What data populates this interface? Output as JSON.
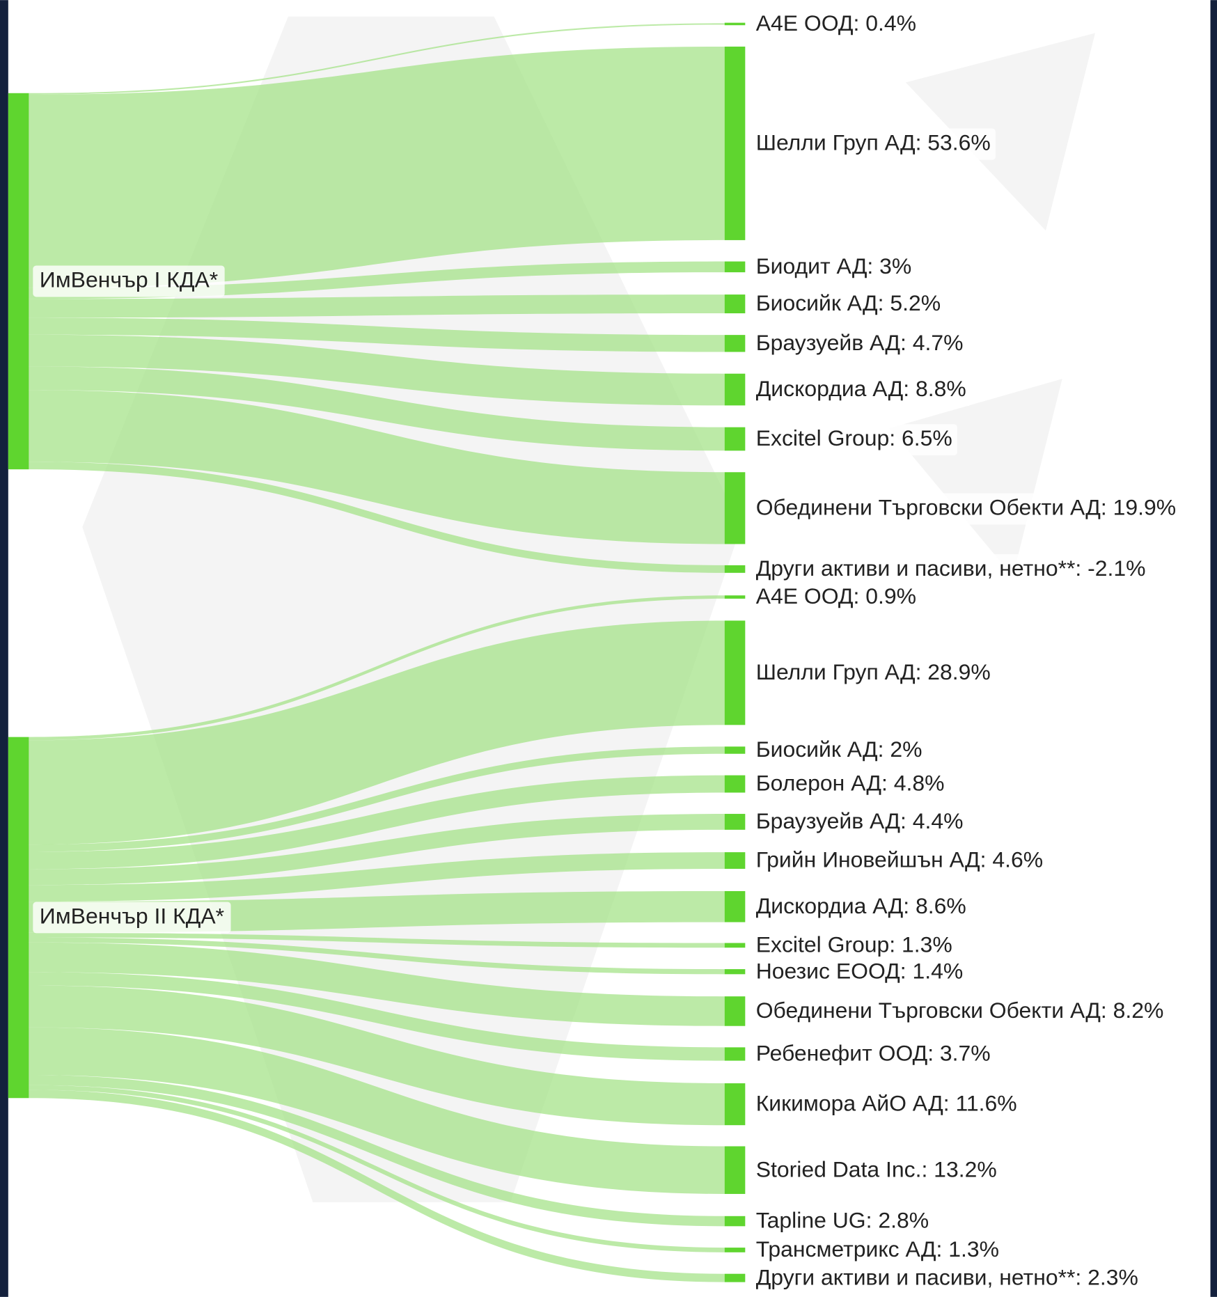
{
  "chart_data": {
    "type": "sankey",
    "node_color": "#5fd52f",
    "link_color": "#a6e38a",
    "sources": [
      {
        "name": "ИмВенчър I КДА*",
        "values": [
          0.4,
          53.6,
          3,
          5.2,
          4.7,
          8.8,
          6.5,
          19.9,
          -2.1
        ],
        "value_labels": [
          "А4Е ООД: 0.4%",
          "Шелли Груп АД: 53.6%",
          "Биодит АД: 3%",
          "Биосийк АД: 5.2%",
          "Браузуейв АД: 4.7%",
          "Дискордиа АД: 8.8%",
          "Excitel Group: 6.5%",
          "Обединени Търговски Обекти АД: 19.9%",
          "Други активи и пасиви, нетно**: -2.1%"
        ]
      },
      {
        "name": "ИмВенчър II КДА*",
        "values": [
          0.9,
          28.9,
          2,
          4.8,
          4.4,
          4.6,
          8.6,
          1.3,
          1.4,
          8.2,
          3.7,
          11.6,
          13.2,
          2.8,
          1.3,
          2.3
        ],
        "value_labels": [
          "А4Е ООД: 0.9%",
          "Шелли Груп АД: 28.9%",
          "Биосийк АД: 2%",
          "Болерон АД: 4.8%",
          "Браузуейв АД: 4.4%",
          "Грийн Иновейшън АД: 4.6%",
          "Дискордиа АД: 8.6%",
          "Excitel Group: 1.3%",
          "Ноезис ЕООД: 1.4%",
          "Обединени Търговски Обекти АД: 8.2%",
          "Ребенефит ООД: 3.7%",
          "Кикимора АйО АД: 11.6%",
          "Storied Data Inc.: 13.2%",
          "Tapline UG: 2.8%",
          "Трансметрикс АД: 1.3%",
          "Други активи и пасиви, нетно**: 2.3%"
        ]
      }
    ]
  }
}
